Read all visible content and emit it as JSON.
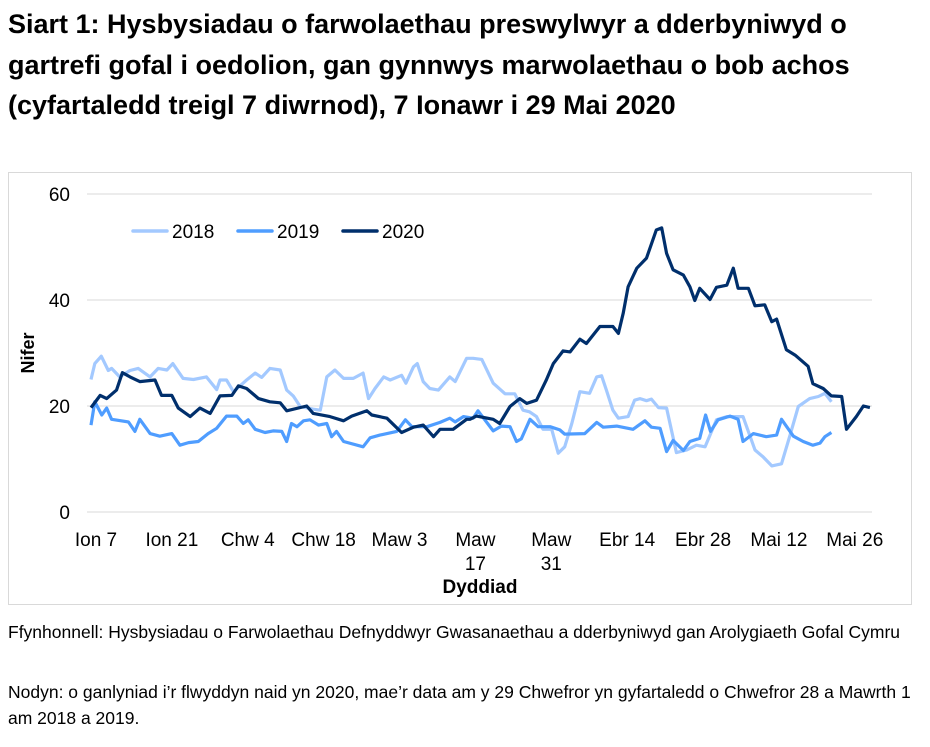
{
  "title": "Siart 1: Hysbysiadau o farwolaethau preswylwyr a dderbyniwyd o gartrefi gofal i oedolion, gan gynnwys marwolaethau o bob achos (cyfartaledd treigl 7 diwrnod), 7 Ionawr i 29 Mai 2020",
  "footer": {
    "source": "Ffynhonnell: Hysbysiadau o Farwolaethau Defnyddwyr Gwasanaethau a dderbyniwyd gan Arolygiaeth Gofal Cymru",
    "note": "Nodyn: o ganlyniad i’r flwyddyn naid yn 2020, mae’r data am y 29 Chwefror yn gyfartaledd o Chwefror 28 a Mawrth 1 am 2018 a 2019."
  },
  "chart_data": {
    "type": "line",
    "xlabel": "Dyddiad",
    "ylabel": "Nifer",
    "ylim": [
      0,
      60
    ],
    "yticks": [
      0,
      20,
      40,
      60
    ],
    "x_unit": "days since 7 Jan",
    "xlim": [
      0,
      144
    ],
    "xticks": [
      {
        "day": 0,
        "label": "Ion 7"
      },
      {
        "day": 14,
        "label": "Ion 21"
      },
      {
        "day": 28,
        "label": "Chw 4"
      },
      {
        "day": 42,
        "label": "Chw 18"
      },
      {
        "day": 56,
        "label": "Maw 3"
      },
      {
        "day": 70,
        "label": "Maw 17"
      },
      {
        "day": 84,
        "label": "Maw 31"
      },
      {
        "day": 98,
        "label": "Ebr 14"
      },
      {
        "day": 112,
        "label": "Ebr 28"
      },
      {
        "day": 126,
        "label": "Mai 12"
      },
      {
        "day": 140,
        "label": "Mai 26"
      }
    ],
    "grid": true,
    "legend_position": "top-left",
    "series": [
      {
        "name": "2018",
        "color": "#a3c9ff",
        "points": [
          [
            0,
            25
          ],
          [
            0.7,
            28
          ],
          [
            1.9,
            29.4
          ],
          [
            3.2,
            26.7
          ],
          [
            3.8,
            27.1
          ],
          [
            5.3,
            25.5
          ],
          [
            7.2,
            26.7
          ],
          [
            8.7,
            27.1
          ],
          [
            10.9,
            25.5
          ],
          [
            12.4,
            27.1
          ],
          [
            14,
            26.8
          ],
          [
            15.1,
            28
          ],
          [
            17,
            25.2
          ],
          [
            18.9,
            25
          ],
          [
            21.3,
            25.5
          ],
          [
            23.2,
            23.1
          ],
          [
            23.8,
            24.9
          ],
          [
            25,
            24.9
          ],
          [
            26.3,
            22.7
          ],
          [
            28.7,
            24.9
          ],
          [
            30.3,
            26.2
          ],
          [
            31.5,
            25.4
          ],
          [
            33,
            27.1
          ],
          [
            34.9,
            26.8
          ],
          [
            36.1,
            23
          ],
          [
            37.3,
            21.9
          ],
          [
            38.6,
            19.9
          ],
          [
            41,
            19.4
          ],
          [
            42.3,
            19.2
          ],
          [
            43.5,
            25.5
          ],
          [
            45,
            26.8
          ],
          [
            46.6,
            25.2
          ],
          [
            48.4,
            25.2
          ],
          [
            50.2,
            26.2
          ],
          [
            51.2,
            21.4
          ],
          [
            52.4,
            23.3
          ],
          [
            54,
            25.5
          ],
          [
            55.2,
            24.9
          ],
          [
            57.3,
            25.8
          ],
          [
            58.1,
            24.3
          ],
          [
            59.5,
            27.4
          ],
          [
            60.2,
            28
          ],
          [
            61.3,
            24.6
          ],
          [
            62.5,
            23.3
          ],
          [
            64.1,
            23
          ],
          [
            66.2,
            25.5
          ],
          [
            67.2,
            24.6
          ],
          [
            69.3,
            29
          ],
          [
            70.5,
            29
          ],
          [
            72.1,
            28.8
          ],
          [
            74.2,
            24.3
          ],
          [
            76.4,
            22.3
          ],
          [
            78.2,
            22.3
          ],
          [
            79.7,
            19.2
          ],
          [
            80.9,
            18.9
          ],
          [
            82.2,
            18
          ],
          [
            83.4,
            15.6
          ],
          [
            85,
            15.6
          ],
          [
            86.2,
            11.1
          ],
          [
            87.4,
            12.3
          ],
          [
            88.7,
            16.7
          ],
          [
            90.2,
            22.7
          ],
          [
            92,
            22.4
          ],
          [
            93.3,
            25.5
          ],
          [
            94.2,
            25.7
          ],
          [
            95.1,
            23
          ],
          [
            96.3,
            19.2
          ],
          [
            97.3,
            17.7
          ],
          [
            99.1,
            18
          ],
          [
            100.3,
            21.1
          ],
          [
            101.3,
            21.4
          ],
          [
            102.5,
            21
          ],
          [
            103.4,
            21.3
          ],
          [
            104.7,
            19.7
          ],
          [
            106.2,
            19.6
          ],
          [
            108,
            11.2
          ],
          [
            109.9,
            11.7
          ],
          [
            111.7,
            12.6
          ],
          [
            113.3,
            12.3
          ],
          [
            115.4,
            17.4
          ],
          [
            117.3,
            18
          ],
          [
            120.3,
            18
          ],
          [
            122.5,
            11.7
          ],
          [
            124,
            10.4
          ],
          [
            125.6,
            8.7
          ],
          [
            127.4,
            9.1
          ],
          [
            128.9,
            14.2
          ],
          [
            130.5,
            19.9
          ],
          [
            132.6,
            21.4
          ],
          [
            134.2,
            21.8
          ],
          [
            135.4,
            22.4
          ],
          [
            136.6,
            20.8
          ]
        ]
      },
      {
        "name": "2019",
        "color": "#4f9dff",
        "points": [
          [
            0,
            16.4
          ],
          [
            0.7,
            20.8
          ],
          [
            2,
            18.3
          ],
          [
            2.9,
            19.6
          ],
          [
            3.8,
            17.5
          ],
          [
            6.9,
            17
          ],
          [
            8.1,
            15.2
          ],
          [
            9,
            17.5
          ],
          [
            10.9,
            14.8
          ],
          [
            12.7,
            14.3
          ],
          [
            14.9,
            14.8
          ],
          [
            16.4,
            12.6
          ],
          [
            18,
            13.1
          ],
          [
            19.8,
            13.3
          ],
          [
            21.6,
            14.8
          ],
          [
            23.2,
            15.8
          ],
          [
            25,
            18.1
          ],
          [
            26.9,
            18.1
          ],
          [
            28.1,
            16.7
          ],
          [
            29,
            17.4
          ],
          [
            30.3,
            15.6
          ],
          [
            32.1,
            15
          ],
          [
            33.6,
            15.3
          ],
          [
            35.2,
            15.2
          ],
          [
            36.1,
            13.3
          ],
          [
            37,
            16.7
          ],
          [
            38,
            16.1
          ],
          [
            39.2,
            17.2
          ],
          [
            40.4,
            17.4
          ],
          [
            42,
            16.4
          ],
          [
            43.5,
            16.7
          ],
          [
            44.4,
            14.2
          ],
          [
            45.3,
            15.2
          ],
          [
            46.6,
            13.3
          ],
          [
            50.2,
            12.3
          ],
          [
            51.5,
            14
          ],
          [
            53.3,
            14.5
          ],
          [
            56.4,
            15.2
          ],
          [
            58,
            17.4
          ],
          [
            59.2,
            16.1
          ],
          [
            62,
            16.1
          ],
          [
            64.4,
            16.9
          ],
          [
            66.2,
            17.7
          ],
          [
            67.2,
            17
          ],
          [
            68.7,
            18
          ],
          [
            70.5,
            17.7
          ],
          [
            71.4,
            19.1
          ],
          [
            74.2,
            15.3
          ],
          [
            75.7,
            16.2
          ],
          [
            77.3,
            16.1
          ],
          [
            78.5,
            13.3
          ],
          [
            79.4,
            13.8
          ],
          [
            81,
            17.5
          ],
          [
            82.5,
            16.1
          ],
          [
            84.7,
            16.1
          ],
          [
            86.5,
            15.5
          ],
          [
            87.4,
            14.7
          ],
          [
            91.1,
            14.8
          ],
          [
            93.3,
            16.9
          ],
          [
            94.5,
            16
          ],
          [
            97,
            16.2
          ],
          [
            100,
            15.6
          ],
          [
            102.2,
            17.2
          ],
          [
            103.4,
            16
          ],
          [
            105,
            15.8
          ],
          [
            106.2,
            11.4
          ],
          [
            107.4,
            13.5
          ],
          [
            109.3,
            11.6
          ],
          [
            110.5,
            13.3
          ],
          [
            112.3,
            13.9
          ],
          [
            113.4,
            18.3
          ],
          [
            114.3,
            15.2
          ],
          [
            115.7,
            17.4
          ],
          [
            117.9,
            18.1
          ],
          [
            119.4,
            17.5
          ],
          [
            120.3,
            13.3
          ],
          [
            122.2,
            14.8
          ],
          [
            124.6,
            14.2
          ],
          [
            126.5,
            14.5
          ],
          [
            127.4,
            17.5
          ],
          [
            129.6,
            14.3
          ],
          [
            131.4,
            13.3
          ],
          [
            133.2,
            12.6
          ],
          [
            134.5,
            13
          ],
          [
            135.4,
            14.2
          ],
          [
            136.6,
            15
          ]
        ]
      },
      {
        "name": "2020",
        "color": "#002f6c",
        "points": [
          [
            0,
            19.7
          ],
          [
            1.7,
            22
          ],
          [
            2.9,
            21.4
          ],
          [
            4.7,
            23
          ],
          [
            5.8,
            26.3
          ],
          [
            7.2,
            25.5
          ],
          [
            9,
            24.6
          ],
          [
            11.8,
            24.9
          ],
          [
            13,
            22
          ],
          [
            14.9,
            22
          ],
          [
            16.1,
            19.6
          ],
          [
            18.3,
            18
          ],
          [
            20.1,
            19.6
          ],
          [
            22,
            18.6
          ],
          [
            23.8,
            21.9
          ],
          [
            26,
            22
          ],
          [
            27.2,
            23.8
          ],
          [
            28.7,
            23.3
          ],
          [
            30.9,
            21.4
          ],
          [
            33,
            20.8
          ],
          [
            34.9,
            20.6
          ],
          [
            36.1,
            19.1
          ],
          [
            39.8,
            20
          ],
          [
            41,
            18.6
          ],
          [
            44.1,
            18
          ],
          [
            46.6,
            17.2
          ],
          [
            48.1,
            18.1
          ],
          [
            50.9,
            19.1
          ],
          [
            51.8,
            18.3
          ],
          [
            54.6,
            17.7
          ],
          [
            57.3,
            15
          ],
          [
            59.5,
            16
          ],
          [
            61.3,
            16.4
          ],
          [
            63.2,
            14.2
          ],
          [
            64.4,
            15.6
          ],
          [
            66.8,
            15.6
          ],
          [
            69.3,
            17.5
          ],
          [
            69.9,
            17.5
          ],
          [
            71.1,
            18.1
          ],
          [
            74.2,
            17.5
          ],
          [
            75.4,
            16.7
          ],
          [
            77.3,
            19.9
          ],
          [
            79.1,
            21.4
          ],
          [
            80.4,
            20.5
          ],
          [
            82.2,
            21.1
          ],
          [
            84,
            24.9
          ],
          [
            85.3,
            28
          ],
          [
            87.1,
            30.4
          ],
          [
            88.4,
            30.2
          ],
          [
            90.2,
            32.6
          ],
          [
            91.4,
            31.8
          ],
          [
            93.9,
            35
          ],
          [
            96.3,
            35
          ],
          [
            97.3,
            33.7
          ],
          [
            98.2,
            37.5
          ],
          [
            99.1,
            42.5
          ],
          [
            100.7,
            46
          ],
          [
            102.5,
            47.9
          ],
          [
            104.3,
            53.2
          ],
          [
            105.3,
            53.6
          ],
          [
            106.2,
            48.8
          ],
          [
            107.4,
            45.7
          ],
          [
            109.3,
            44.7
          ],
          [
            110.5,
            42.5
          ],
          [
            111.4,
            39.9
          ],
          [
            112.3,
            42.2
          ],
          [
            114.2,
            40.1
          ],
          [
            115.4,
            42.4
          ],
          [
            117.3,
            42.8
          ],
          [
            118.5,
            46
          ],
          [
            119.4,
            42.2
          ],
          [
            121.3,
            42.2
          ],
          [
            122.5,
            38.9
          ],
          [
            124.3,
            39.1
          ],
          [
            125.6,
            35.9
          ],
          [
            126.5,
            36.4
          ],
          [
            128.3,
            30.6
          ],
          [
            129.9,
            29.6
          ],
          [
            132.3,
            27.5
          ],
          [
            133.2,
            24.2
          ],
          [
            135.1,
            23.3
          ],
          [
            136.6,
            21.9
          ],
          [
            138.5,
            21.8
          ],
          [
            139.4,
            15.6
          ],
          [
            141.2,
            18
          ],
          [
            142.5,
            20
          ],
          [
            143.7,
            19.7
          ]
        ]
      }
    ]
  }
}
